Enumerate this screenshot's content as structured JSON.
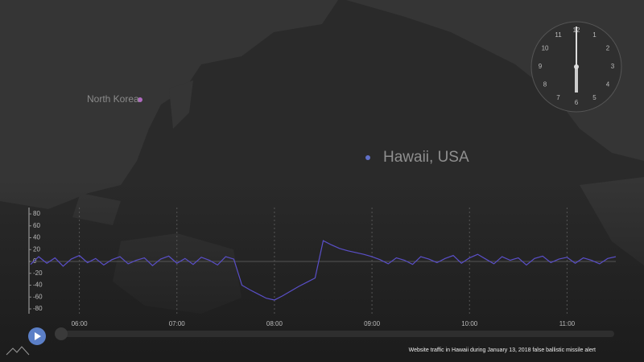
{
  "map": {
    "labels": [
      "North Korea",
      "Hawaii, USA"
    ]
  },
  "clock": {
    "numbers": [
      12,
      1,
      2,
      3,
      4,
      5,
      6,
      7,
      8,
      9,
      10,
      11
    ]
  },
  "chart_data": {
    "type": "line",
    "x": [
      330,
      335,
      340,
      345,
      350,
      355,
      360,
      365,
      370,
      375,
      380,
      385,
      390,
      395,
      400,
      405,
      410,
      415,
      420,
      425,
      430,
      435,
      440,
      445,
      450,
      455,
      460,
      465,
      470,
      475,
      480,
      485,
      490,
      495,
      500,
      505,
      510,
      515,
      520,
      525,
      530,
      535,
      540,
      545,
      550,
      555,
      560,
      565,
      570,
      575,
      580,
      585,
      590,
      595,
      600,
      605,
      610,
      615,
      620,
      625,
      630,
      635,
      640,
      645,
      650,
      655,
      660,
      665,
      670,
      675,
      680,
      685,
      690
    ],
    "series": [
      {
        "color": "#5a4fc8",
        "values": [
          -5,
          8,
          -3,
          6,
          -8,
          4,
          10,
          -2,
          5,
          -6,
          3,
          8,
          -4,
          2,
          6,
          -7,
          4,
          9,
          -3,
          5,
          -5,
          7,
          2,
          -6,
          8,
          4,
          -40,
          -48,
          -55,
          -62,
          -65,
          -58,
          -50,
          -42,
          -35,
          -28,
          35,
          28,
          22,
          18,
          15,
          12,
          8,
          3,
          -4,
          6,
          2,
          -5,
          8,
          4,
          -2,
          5,
          10,
          -3,
          6,
          12,
          4,
          -4,
          8,
          2,
          6,
          -6,
          5,
          9,
          -2,
          4,
          7,
          -3,
          6,
          2,
          -4,
          5,
          8
        ]
      }
    ],
    "xlim": [
      330,
      690
    ],
    "xticks": [
      {
        "value": 360,
        "label": "06:00"
      },
      {
        "value": 420,
        "label": "07:00"
      },
      {
        "value": 480,
        "label": "08:00"
      },
      {
        "value": 540,
        "label": "09:00"
      },
      {
        "value": 600,
        "label": "10:00"
      },
      {
        "value": 660,
        "label": "11:00"
      }
    ],
    "ylim": [
      -80,
      80
    ],
    "yticks": [
      80,
      60,
      40,
      20,
      0,
      -20,
      -40,
      -60,
      -80
    ],
    "grid": true
  },
  "caption": "Website traffic in Hawaii during January 13, 2018 false ballistic missile alert"
}
